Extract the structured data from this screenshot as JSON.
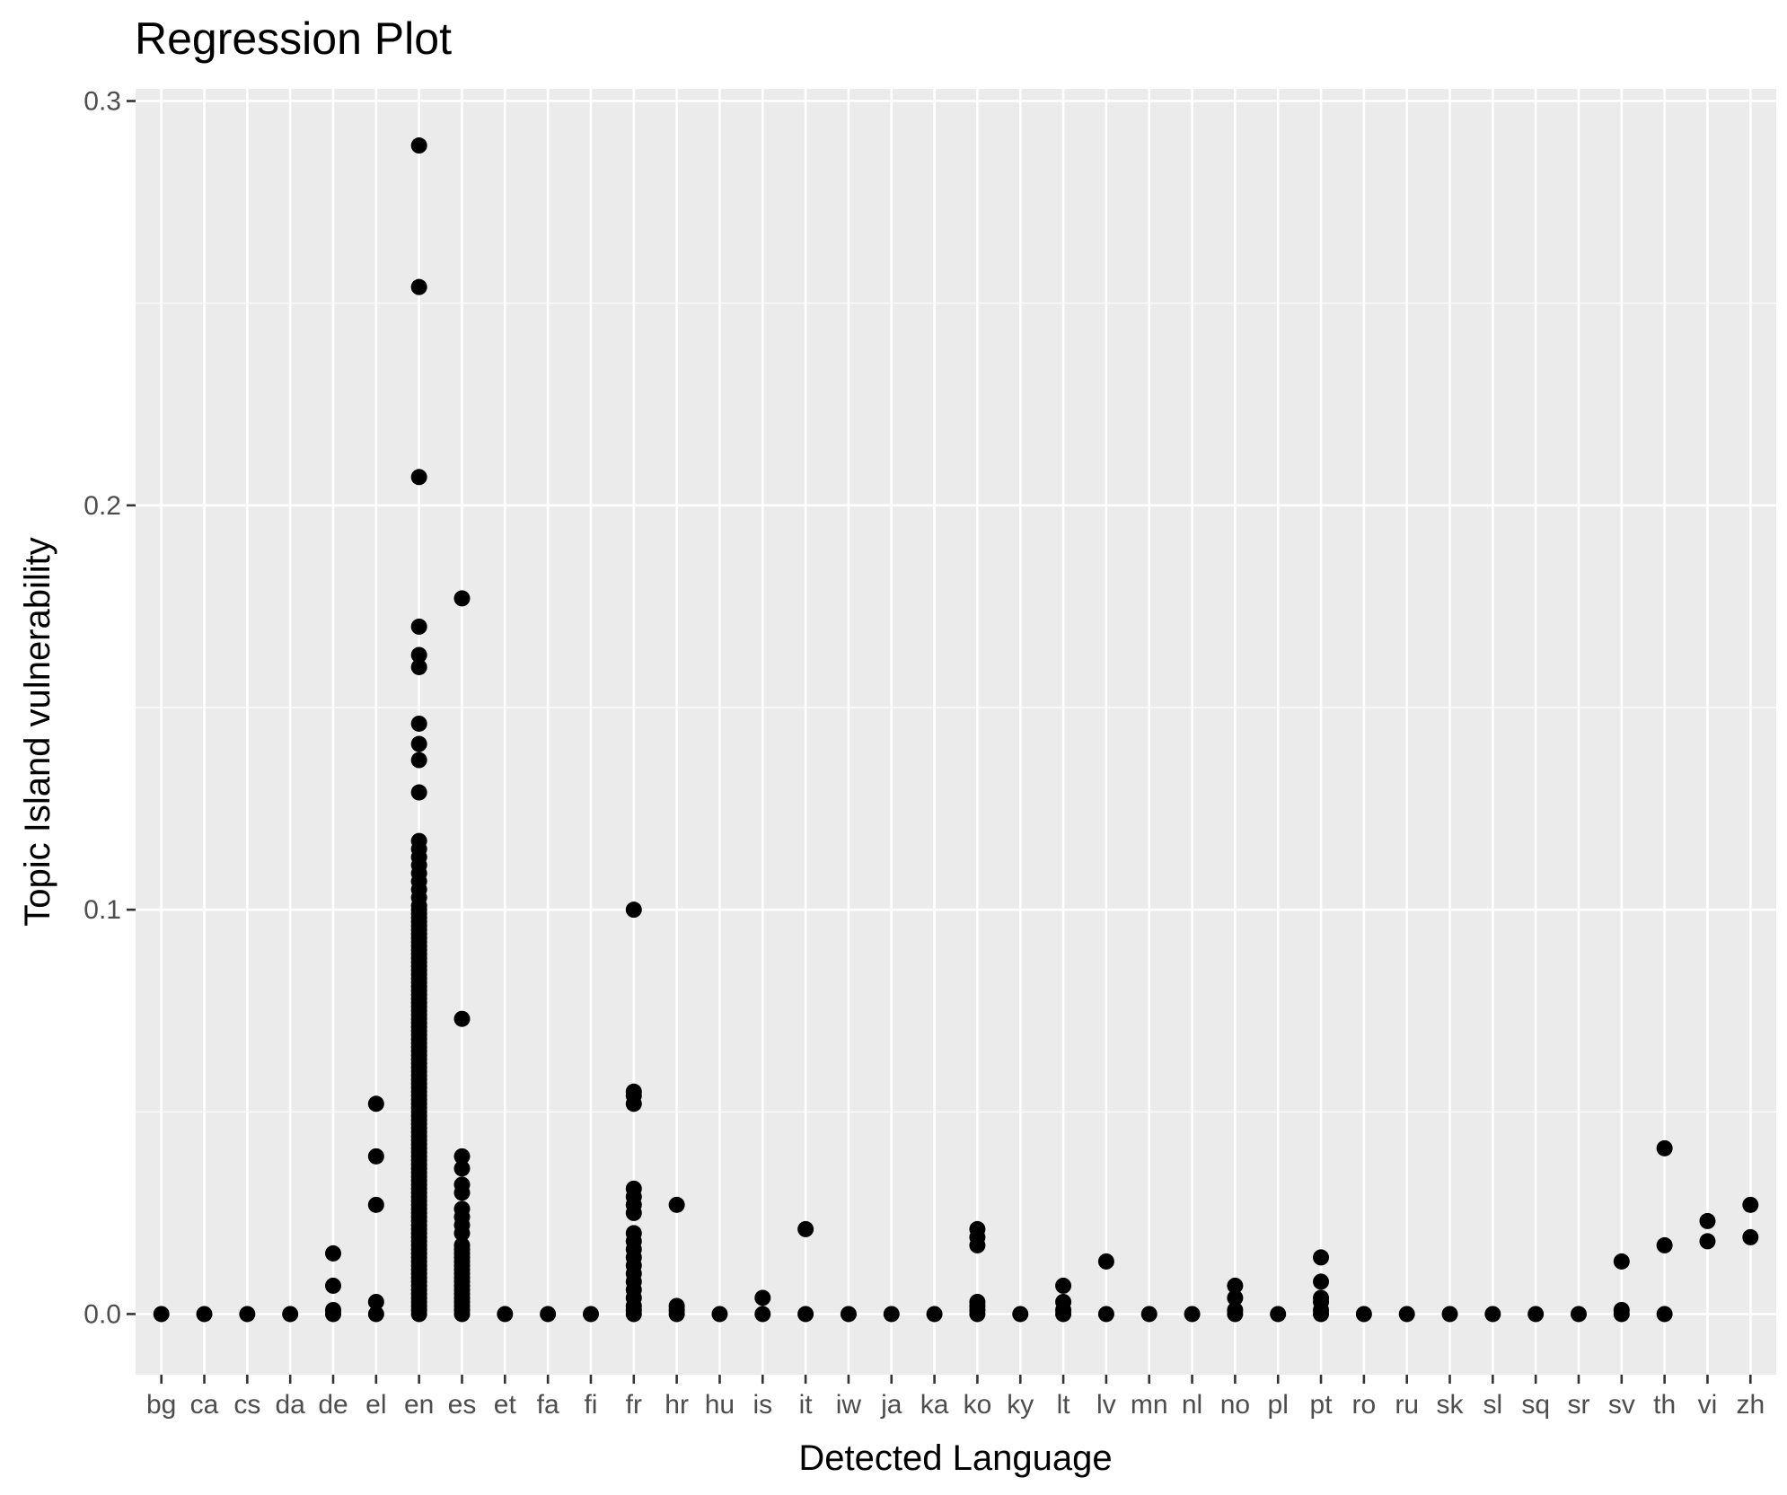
{
  "chart_data": {
    "type": "scatter",
    "title": "Regression Plot",
    "xlabel": "Detected Language",
    "ylabel": "Topic Island vulnerability",
    "categories": [
      "bg",
      "ca",
      "cs",
      "da",
      "de",
      "el",
      "en",
      "es",
      "et",
      "fa",
      "fi",
      "fr",
      "hr",
      "hu",
      "is",
      "it",
      "iw",
      "ja",
      "ka",
      "ko",
      "ky",
      "lt",
      "lv",
      "mn",
      "nl",
      "no",
      "pl",
      "pt",
      "ro",
      "ru",
      "sk",
      "sl",
      "sq",
      "sr",
      "sv",
      "th",
      "vi",
      "zh"
    ],
    "ylim": [
      -0.015,
      0.303
    ],
    "y_ticks": [
      0.0,
      0.1,
      0.2,
      0.3
    ],
    "y_tick_labels": [
      "0.0",
      "0.1",
      "0.2",
      "0.3"
    ],
    "grid": true,
    "points": [
      {
        "x": "bg",
        "y": [
          0
        ]
      },
      {
        "x": "ca",
        "y": [
          0
        ]
      },
      {
        "x": "cs",
        "y": [
          0
        ]
      },
      {
        "x": "da",
        "y": [
          0
        ]
      },
      {
        "x": "de",
        "y": [
          0,
          0.001,
          0.007,
          0.015
        ]
      },
      {
        "x": "el",
        "y": [
          0,
          0.003,
          0.027,
          0.039,
          0.052
        ]
      },
      {
        "x": "en",
        "y": [
          0,
          0.001,
          0.002,
          0.003,
          0.004,
          0.005,
          0.006,
          0.007,
          0.008,
          0.009,
          0.01,
          0.011,
          0.012,
          0.013,
          0.014,
          0.015,
          0.016,
          0.017,
          0.018,
          0.019,
          0.02,
          0.021,
          0.022,
          0.023,
          0.024,
          0.025,
          0.026,
          0.027,
          0.028,
          0.029,
          0.03,
          0.031,
          0.032,
          0.033,
          0.034,
          0.035,
          0.036,
          0.037,
          0.038,
          0.039,
          0.04,
          0.041,
          0.042,
          0.043,
          0.044,
          0.045,
          0.046,
          0.047,
          0.048,
          0.049,
          0.05,
          0.051,
          0.052,
          0.053,
          0.054,
          0.055,
          0.056,
          0.057,
          0.058,
          0.059,
          0.06,
          0.061,
          0.062,
          0.063,
          0.064,
          0.065,
          0.066,
          0.067,
          0.068,
          0.069,
          0.07,
          0.071,
          0.072,
          0.073,
          0.074,
          0.075,
          0.076,
          0.077,
          0.078,
          0.079,
          0.08,
          0.081,
          0.082,
          0.083,
          0.084,
          0.085,
          0.086,
          0.087,
          0.088,
          0.089,
          0.09,
          0.091,
          0.092,
          0.093,
          0.094,
          0.095,
          0.096,
          0.097,
          0.098,
          0.099,
          0.1,
          0.101,
          0.103,
          0.105,
          0.107,
          0.109,
          0.111,
          0.113,
          0.115,
          0.117,
          0.129,
          0.137,
          0.141,
          0.146,
          0.16,
          0.163,
          0.17,
          0.207,
          0.254,
          0.289
        ]
      },
      {
        "x": "es",
        "y": [
          0,
          0.001,
          0.002,
          0.003,
          0.004,
          0.005,
          0.006,
          0.007,
          0.008,
          0.009,
          0.01,
          0.011,
          0.012,
          0.013,
          0.014,
          0.015,
          0.016,
          0.017,
          0.02,
          0.022,
          0.024,
          0.026,
          0.03,
          0.032,
          0.036,
          0.039,
          0.073,
          0.177
        ]
      },
      {
        "x": "et",
        "y": [
          0
        ]
      },
      {
        "x": "fa",
        "y": [
          0
        ]
      },
      {
        "x": "fi",
        "y": [
          0
        ]
      },
      {
        "x": "fr",
        "y": [
          0,
          0.001,
          0.002,
          0.004,
          0.006,
          0.008,
          0.01,
          0.012,
          0.014,
          0.016,
          0.018,
          0.02,
          0.025,
          0.027,
          0.029,
          0.031,
          0.052,
          0.054,
          0.055,
          0.1
        ]
      },
      {
        "x": "hr",
        "y": [
          0,
          0.001,
          0.002,
          0.027
        ]
      },
      {
        "x": "hu",
        "y": [
          0
        ]
      },
      {
        "x": "is",
        "y": [
          0,
          0.004
        ]
      },
      {
        "x": "it",
        "y": [
          0,
          0.021
        ]
      },
      {
        "x": "iw",
        "y": [
          0
        ]
      },
      {
        "x": "ja",
        "y": [
          0
        ]
      },
      {
        "x": "ka",
        "y": [
          0
        ]
      },
      {
        "x": "ko",
        "y": [
          0,
          0.001,
          0.002,
          0.003,
          0.017,
          0.019,
          0.021
        ]
      },
      {
        "x": "ky",
        "y": [
          0
        ]
      },
      {
        "x": "lt",
        "y": [
          0,
          0.001,
          0.003,
          0.007
        ]
      },
      {
        "x": "lv",
        "y": [
          0,
          0.013
        ]
      },
      {
        "x": "mn",
        "y": [
          0
        ]
      },
      {
        "x": "nl",
        "y": [
          0
        ]
      },
      {
        "x": "no",
        "y": [
          0,
          0.001,
          0.004,
          0.007
        ]
      },
      {
        "x": "pl",
        "y": [
          0
        ]
      },
      {
        "x": "pt",
        "y": [
          0,
          0.001,
          0.003,
          0.004,
          0.008,
          0.014
        ]
      },
      {
        "x": "ro",
        "y": [
          0
        ]
      },
      {
        "x": "ru",
        "y": [
          0
        ]
      },
      {
        "x": "sk",
        "y": [
          0
        ]
      },
      {
        "x": "sl",
        "y": [
          0
        ]
      },
      {
        "x": "sq",
        "y": [
          0
        ]
      },
      {
        "x": "sr",
        "y": [
          0
        ]
      },
      {
        "x": "sv",
        "y": [
          0,
          0.001,
          0.013
        ]
      },
      {
        "x": "th",
        "y": [
          0,
          0.017,
          0.041
        ]
      },
      {
        "x": "vi",
        "y": [
          0.018,
          0.023
        ]
      },
      {
        "x": "zh",
        "y": [
          0.019,
          0.027
        ]
      }
    ]
  }
}
